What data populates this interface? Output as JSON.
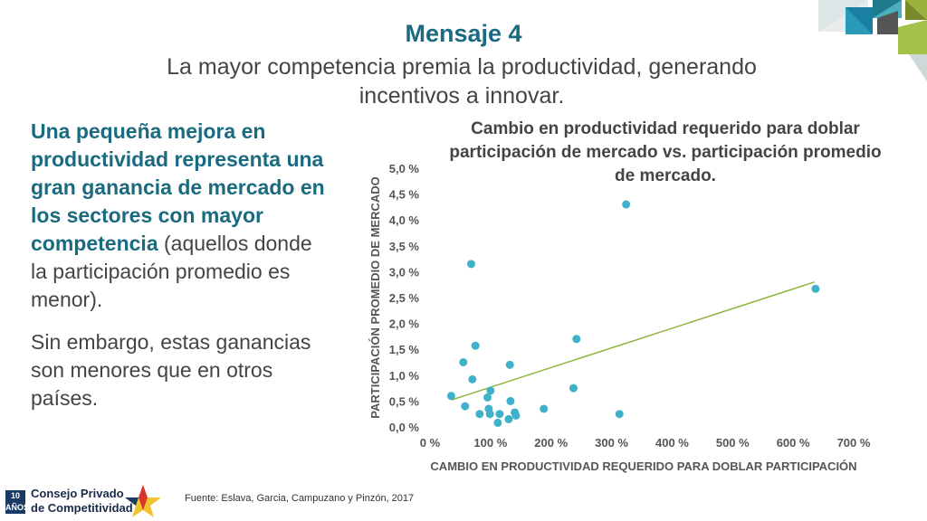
{
  "header": {
    "title": "Mensaje 4",
    "subtitle": "La mayor competencia premia la productividad, generando incentivos a innovar."
  },
  "body_text": {
    "bold": "Una pequeña mejora en productividad representa una gran ganancia de mercado en los sectores con mayor competencia",
    "normal": " (aquellos donde la participación promedio es menor).",
    "second": "Sin embargo, estas ganancias son menores que en otros países."
  },
  "source": "Fuente:  Eslava, Garcia, Campuzano y Pinzón, 2017",
  "logo": {
    "line1": "Consejo Privado",
    "line2": "de Competitividad",
    "badge": "10 AÑOS"
  },
  "colors": {
    "accent": "#1a6a80",
    "points": "#3fb2c9",
    "trend": "#8db53f"
  },
  "chart_data": {
    "type": "scatter",
    "title": "Cambio en productividad requerido para doblar participación de mercado vs. participación promedio de mercado.",
    "xlabel": "CAMBIO EN PRODUCTIVIDAD REQUERIDO PARA DOBLAR PARTICIPACIÓN",
    "ylabel": "PARTICIPACIÓN PROMEDIO DE MERCADO",
    "xlim": [
      0,
      700
    ],
    "ylim": [
      0,
      5
    ],
    "x_ticks": [
      "0 %",
      "100 %",
      "200 %",
      "300 %",
      "400 %",
      "500 %",
      "600 %",
      "700 %"
    ],
    "y_ticks": [
      "0,0 %",
      "0,5 %",
      "1,0 %",
      "1,5 %",
      "2,0 %",
      "2,5 %",
      "3,0 %",
      "3,5 %",
      "4,0 %",
      "4,5 %",
      "5,0 %"
    ],
    "points": [
      {
        "x": 35,
        "y": 0.6
      },
      {
        "x": 55,
        "y": 1.25
      },
      {
        "x": 58,
        "y": 0.4
      },
      {
        "x": 68,
        "y": 3.15
      },
      {
        "x": 70,
        "y": 0.92
      },
      {
        "x": 75,
        "y": 1.57
      },
      {
        "x": 82,
        "y": 0.25
      },
      {
        "x": 95,
        "y": 0.57
      },
      {
        "x": 97,
        "y": 0.35
      },
      {
        "x": 99,
        "y": 0.25
      },
      {
        "x": 100,
        "y": 0.7
      },
      {
        "x": 112,
        "y": 0.08
      },
      {
        "x": 115,
        "y": 0.25
      },
      {
        "x": 130,
        "y": 0.15
      },
      {
        "x": 132,
        "y": 1.2
      },
      {
        "x": 133,
        "y": 0.5
      },
      {
        "x": 140,
        "y": 0.28
      },
      {
        "x": 142,
        "y": 0.22
      },
      {
        "x": 188,
        "y": 0.35
      },
      {
        "x": 237,
        "y": 0.75
      },
      {
        "x": 242,
        "y": 1.7
      },
      {
        "x": 313,
        "y": 0.25
      },
      {
        "x": 324,
        "y": 4.3
      },
      {
        "x": 637,
        "y": 2.67
      }
    ],
    "trendline": {
      "x": [
        35,
        635
      ],
      "y": [
        0.52,
        2.8
      ]
    }
  }
}
